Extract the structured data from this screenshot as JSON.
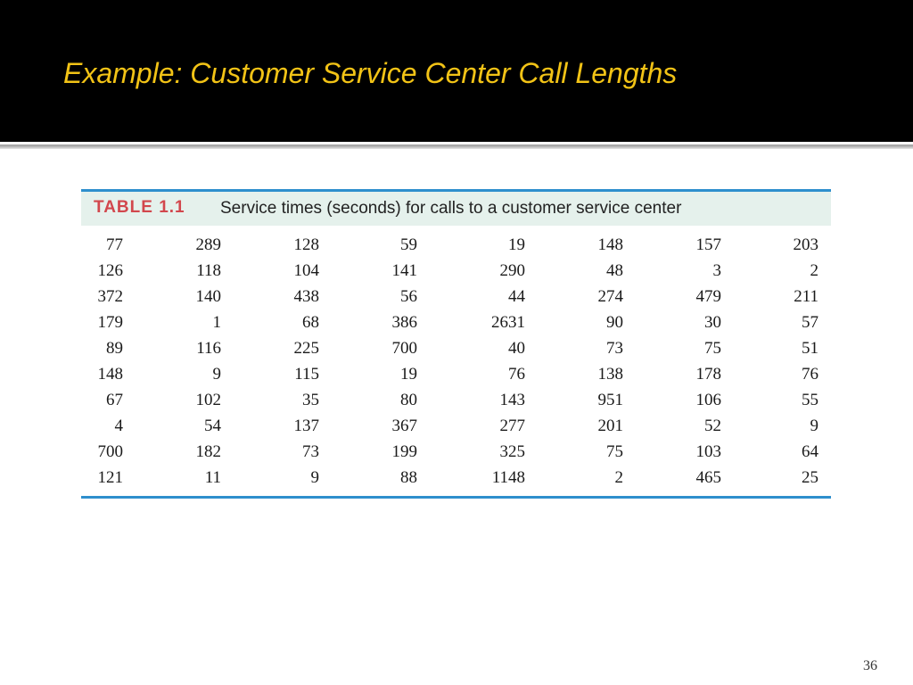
{
  "slide": {
    "title": "Example:  Customer Service Center Call Lengths",
    "page_number": "36"
  },
  "table": {
    "label": "TABLE 1.1",
    "caption": "Service times (seconds) for calls to a customer service center",
    "rows": [
      [
        "77",
        "289",
        "128",
        "59",
        "19",
        "148",
        "157",
        "203"
      ],
      [
        "126",
        "118",
        "104",
        "141",
        "290",
        "48",
        "3",
        "2"
      ],
      [
        "372",
        "140",
        "438",
        "56",
        "44",
        "274",
        "479",
        "211"
      ],
      [
        "179",
        "1",
        "68",
        "386",
        "2631",
        "90",
        "30",
        "57"
      ],
      [
        "89",
        "116",
        "225",
        "700",
        "40",
        "73",
        "75",
        "51"
      ],
      [
        "148",
        "9",
        "115",
        "19",
        "76",
        "138",
        "178",
        "76"
      ],
      [
        "67",
        "102",
        "35",
        "80",
        "143",
        "951",
        "106",
        "55"
      ],
      [
        "4",
        "54",
        "137",
        "367",
        "277",
        "201",
        "52",
        "9"
      ],
      [
        "700",
        "182",
        "73",
        "199",
        "325",
        "75",
        "103",
        "64"
      ],
      [
        "121",
        "11",
        "9",
        "88",
        "1148",
        "2",
        "465",
        "25"
      ]
    ]
  },
  "colors": {
    "title_background": "#000000",
    "title_text": "#f2c316",
    "table_label": "#d2474d",
    "table_header_background": "#e5f1ec",
    "table_rule": "#2e8fcd"
  }
}
